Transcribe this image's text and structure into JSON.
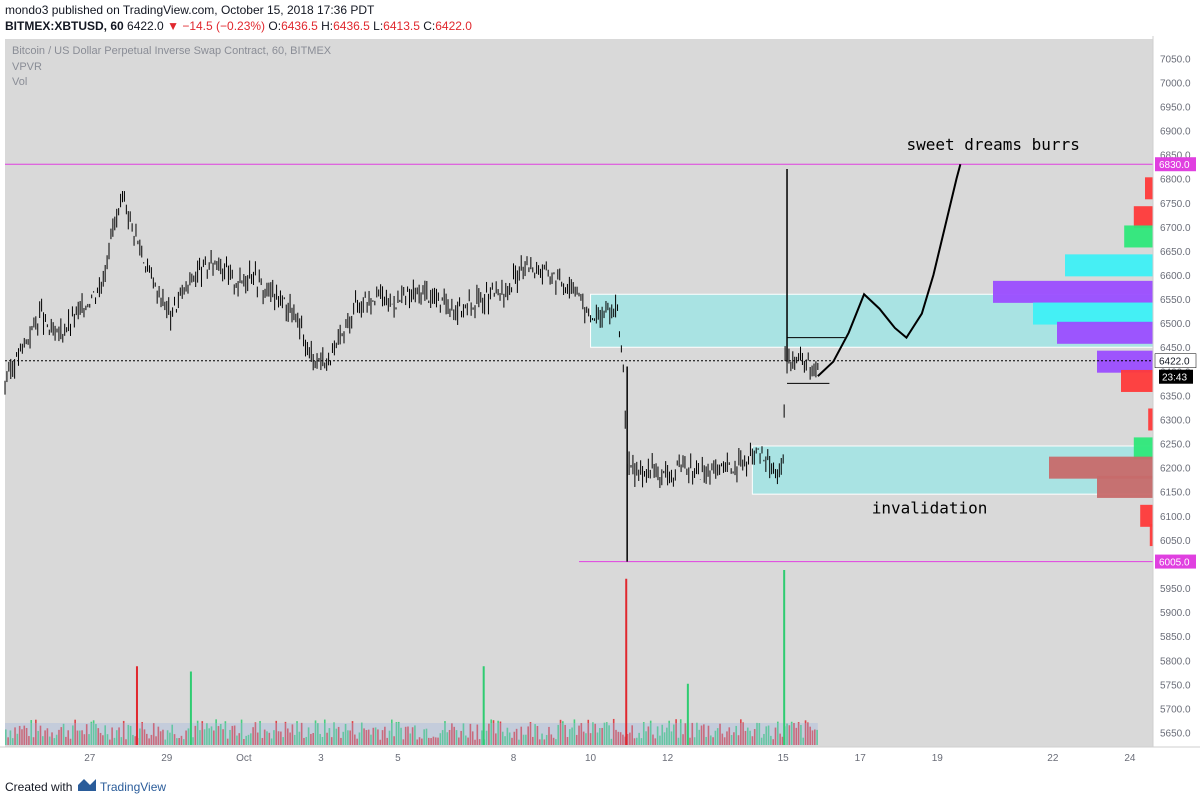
{
  "header": {
    "author": "mondo3",
    "published_text": "published on TradingView.com, October 15, 2018 17:36 PDT",
    "symbol": "BITMEX:XBTUSD, 60",
    "last": "6422.0",
    "change_arrow": "▼",
    "change": "−14.5 (−0.23%)",
    "o_label": "O:",
    "o_value": "6436.5",
    "h_label": "H:",
    "h_value": "6436.5",
    "l_label": "L:",
    "l_value": "6413.5",
    "c_label": "C:",
    "c_value": "6422.0"
  },
  "chart_data": {
    "type": "candlestick",
    "title": "Bitcoin / US Dollar Perpetual Inverse Swap Contract, 60, BITMEX",
    "indicators": [
      "VPVR",
      "Vol"
    ],
    "y_axis": {
      "ylim": [
        5620,
        7090
      ],
      "ticks": [
        7050,
        7000,
        6950,
        6900,
        6850,
        6800,
        6750,
        6700,
        6650,
        6600,
        6550,
        6500,
        6450,
        6400,
        6350,
        6300,
        6250,
        6200,
        6150,
        6100,
        6050,
        5950,
        5900,
        5850,
        5800,
        5750,
        5700,
        5650
      ],
      "hidden_near_labels": [
        6450
      ]
    },
    "x_axis": {
      "labels": [
        {
          "label": "27",
          "day": 27
        },
        {
          "label": "29",
          "day": 29
        },
        {
          "label": "Oct",
          "day": 31
        },
        {
          "label": "3",
          "day": 33
        },
        {
          "label": "5",
          "day": 35
        },
        {
          "label": "8",
          "day": 38
        },
        {
          "label": "10",
          "day": 40
        },
        {
          "label": "12",
          "day": 42
        },
        {
          "label": "15",
          "day": 45
        },
        {
          "label": "17",
          "day": 47
        },
        {
          "label": "19",
          "day": 49
        },
        {
          "label": "22",
          "day": 52
        },
        {
          "label": "24",
          "day": 54
        }
      ],
      "day_range": [
        24.8,
        54.6
      ]
    },
    "price_path": [
      [
        24.8,
        6380
      ],
      [
        25.2,
        6440
      ],
      [
        25.7,
        6520
      ],
      [
        26.1,
        6470
      ],
      [
        26.5,
        6500
      ],
      [
        26.9,
        6540
      ],
      [
        27.3,
        6580
      ],
      [
        27.6,
        6700
      ],
      [
        27.9,
        6750
      ],
      [
        28.2,
        6680
      ],
      [
        28.5,
        6610
      ],
      [
        28.8,
        6560
      ],
      [
        29.1,
        6520
      ],
      [
        29.4,
        6560
      ],
      [
        29.7,
        6600
      ],
      [
        30.0,
        6610
      ],
      [
        30.3,
        6630
      ],
      [
        30.6,
        6600
      ],
      [
        30.9,
        6580
      ],
      [
        31.2,
        6610
      ],
      [
        31.5,
        6570
      ],
      [
        31.8,
        6560
      ],
      [
        32.1,
        6540
      ],
      [
        32.4,
        6500
      ],
      [
        32.7,
        6440
      ],
      [
        33.0,
        6420
      ],
      [
        33.3,
        6430
      ],
      [
        33.6,
        6480
      ],
      [
        33.9,
        6540
      ],
      [
        34.2,
        6550
      ],
      [
        34.5,
        6560
      ],
      [
        34.8,
        6540
      ],
      [
        35.1,
        6550
      ],
      [
        35.4,
        6560
      ],
      [
        35.7,
        6560
      ],
      [
        36.0,
        6550
      ],
      [
        36.3,
        6540
      ],
      [
        36.6,
        6530
      ],
      [
        36.9,
        6540
      ],
      [
        37.2,
        6550
      ],
      [
        37.5,
        6560
      ],
      [
        37.8,
        6560
      ],
      [
        38.1,
        6600
      ],
      [
        38.4,
        6620
      ],
      [
        38.7,
        6610
      ],
      [
        39.0,
        6600
      ],
      [
        39.3,
        6580
      ],
      [
        39.6,
        6580
      ],
      [
        39.9,
        6520
      ],
      [
        40.2,
        6510
      ],
      [
        40.5,
        6530
      ],
      [
        40.7,
        6520
      ],
      [
        40.85,
        6410
      ],
      [
        40.95,
        6200
      ],
      [
        41.2,
        6190
      ],
      [
        41.6,
        6200
      ],
      [
        42.0,
        6180
      ],
      [
        42.4,
        6200
      ],
      [
        42.8,
        6190
      ],
      [
        43.2,
        6190
      ],
      [
        43.6,
        6200
      ],
      [
        44.0,
        6210
      ],
      [
        44.3,
        6230
      ],
      [
        44.6,
        6210
      ],
      [
        44.85,
        6190
      ],
      [
        45.0,
        6200
      ],
      [
        45.05,
        6420
      ],
      [
        45.3,
        6430
      ],
      [
        45.6,
        6420
      ],
      [
        45.8,
        6410
      ],
      [
        45.95,
        6422
      ]
    ],
    "wick_extremes": {
      "high": [
        45.1,
        6820
      ],
      "low": [
        40.95,
        6005
      ]
    },
    "volume_spikes": [
      {
        "day": 40.9,
        "value": 0.95,
        "color": "red"
      },
      {
        "day": 45.0,
        "value": 1.0,
        "color": "green"
      },
      {
        "day": 29.6,
        "value": 0.42,
        "color": "green"
      },
      {
        "day": 37.2,
        "value": 0.45,
        "color": "green"
      },
      {
        "day": 42.5,
        "value": 0.35,
        "color": "green"
      },
      {
        "day": 28.2,
        "value": 0.45,
        "color": "red"
      }
    ],
    "horizontal_levels": [
      {
        "value": 6830,
        "label": "6830.0",
        "color": "#e040e0"
      },
      {
        "value": 6005,
        "label": "6005.0",
        "color": "#e040e0"
      },
      {
        "value": 6422,
        "label": "6422.0",
        "color": "#000000",
        "dotted": true
      }
    ],
    "zones": [
      {
        "from_day": 40.0,
        "to_day": 54.6,
        "low": 6450,
        "high": 6560,
        "color": "#a9e3e3"
      },
      {
        "from_day": 44.2,
        "to_day": 54.6,
        "low": 6145,
        "high": 6245,
        "color": "#a9e3e3"
      }
    ],
    "projection_path": [
      [
        45.9,
        6390
      ],
      [
        46.3,
        6420
      ],
      [
        46.7,
        6480
      ],
      [
        47.1,
        6560
      ],
      [
        47.5,
        6530
      ],
      [
        47.9,
        6490
      ],
      [
        48.2,
        6470
      ],
      [
        48.6,
        6520
      ],
      [
        48.9,
        6600
      ],
      [
        49.2,
        6700
      ],
      [
        49.5,
        6800
      ],
      [
        49.6,
        6830
      ]
    ],
    "price_countdown": "23:43",
    "annotations": [
      {
        "text": "sweet dreams burrs",
        "day": 48.2,
        "value": 6860
      },
      {
        "text": "invalidation",
        "day": 47.3,
        "value": 6105
      }
    ],
    "vpvr": {
      "anchor_day": 54.6,
      "profile": [
        {
          "value": 6780,
          "width": 0.05,
          "color": "#ff3a3a"
        },
        {
          "value": 6720,
          "width": 0.12,
          "color": "#ff3a3a"
        },
        {
          "value": 6680,
          "width": 0.18,
          "color": "#2ee87a"
        },
        {
          "value": 6620,
          "width": 0.55,
          "color": "#3ef0f5"
        },
        {
          "value": 6565,
          "width": 1.0,
          "color": "#9b4dff"
        },
        {
          "value": 6520,
          "width": 0.75,
          "color": "#3ef0f5"
        },
        {
          "value": 6480,
          "width": 0.6,
          "color": "#9b4dff"
        },
        {
          "value": 6420,
          "width": 0.35,
          "color": "#9b4dff"
        },
        {
          "value": 6380,
          "width": 0.2,
          "color": "#ff3a3a"
        },
        {
          "value": 6300,
          "width": 0.03,
          "color": "#ff3a3a"
        },
        {
          "value": 6240,
          "width": 0.12,
          "color": "#2ee87a"
        },
        {
          "value": 6200,
          "width": 0.65,
          "color": "#c76a6a"
        },
        {
          "value": 6160,
          "width": 0.35,
          "color": "#c76a6a"
        },
        {
          "value": 6100,
          "width": 0.08,
          "color": "#ff3a3a"
        },
        {
          "value": 6060,
          "width": 0.02,
          "color": "#ff3a3a"
        }
      ]
    },
    "colors": {
      "background": "#d9d9d9",
      "up": "#000000",
      "down": "#000000",
      "zone": "#a9e3e3",
      "level": "#e040e0",
      "vol_up": "#2ecc71",
      "vol_down": "#e0282e"
    }
  },
  "footer": {
    "created_with": "Created with",
    "brand": "TradingView"
  }
}
